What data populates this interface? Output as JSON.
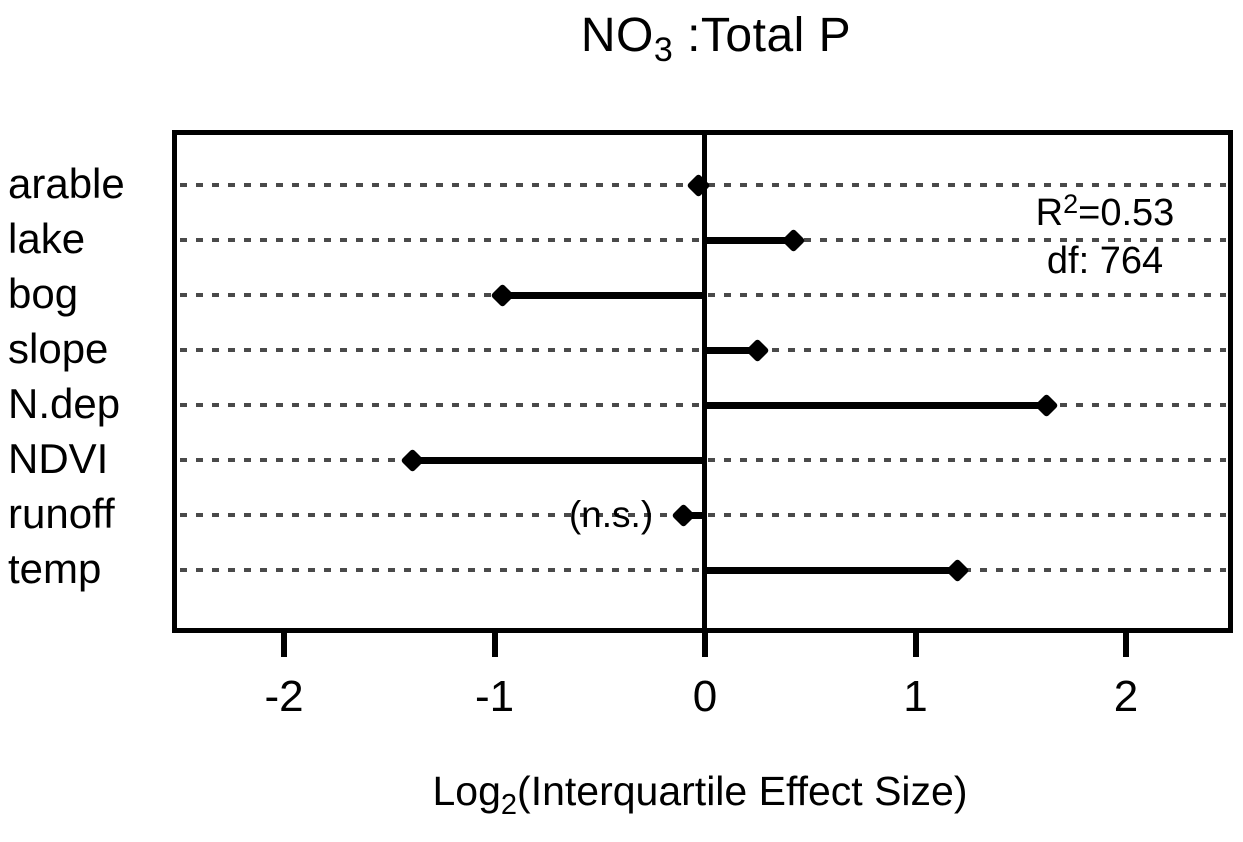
{
  "title": {
    "prefix": "NO",
    "subscript": "3",
    "suffix": " :Total P"
  },
  "x_axis": {
    "label_prefix": "Log",
    "label_subscript": "2",
    "label_suffix": "(Interquartile Effect Size)",
    "ticks": [
      "-2",
      "-1",
      "0",
      "1",
      "2"
    ]
  },
  "annotations": {
    "r_squared_base": "R",
    "r_squared_exponent": "2",
    "r_squared_value": "=0.53",
    "df_label": "df: 764",
    "not_significant_label": "(n.s.)"
  },
  "chart_data": {
    "type": "lollipop",
    "orientation": "horizontal",
    "title": "NO3 :Total P",
    "xlabel": "Log2(Interquartile Effect Size)",
    "categories": [
      "arable",
      "lake",
      "bog",
      "slope",
      "N.dep",
      "NDVI",
      "runoff",
      "temp"
    ],
    "values": [
      -0.03,
      0.42,
      -0.96,
      0.25,
      1.62,
      -1.39,
      -0.1,
      1.2
    ],
    "not_significant_categories": [
      "runoff"
    ],
    "xlim": [
      -2.5,
      2.5
    ],
    "x_ticks": [
      -2,
      -1,
      0,
      1,
      2
    ],
    "r_squared": 0.53,
    "df": 764,
    "grid": "horizontal dashed gridlines, one per category",
    "legend": "none",
    "colors": {
      "data": "#000000",
      "grid": "#4a4a4a",
      "background": "#ffffff",
      "frame": "#000000"
    }
  }
}
